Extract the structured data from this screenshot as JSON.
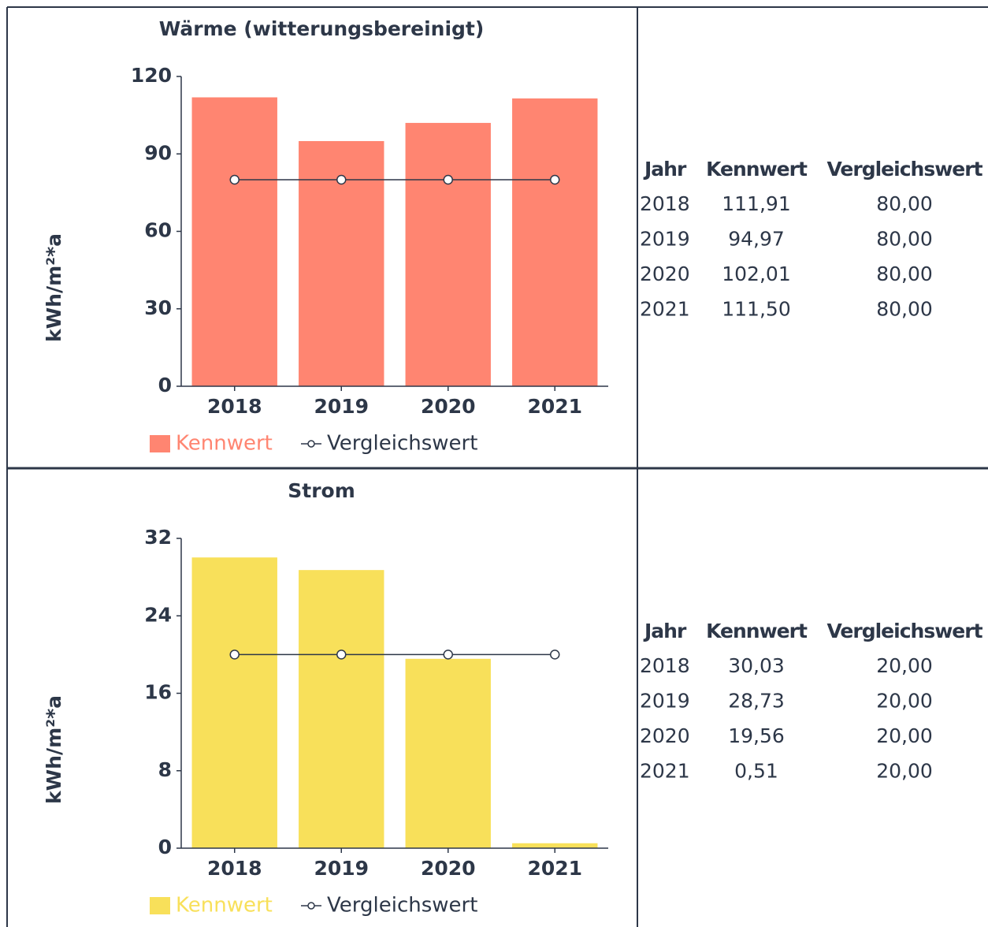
{
  "chart_data": [
    {
      "type": "bar",
      "title": "Wärme (witterungsbereinigt)",
      "y_label": "kWh/m²*a",
      "categories": [
        "2018",
        "2019",
        "2020",
        "2021"
      ],
      "series": [
        {
          "name": "Kennwert",
          "type": "bar",
          "color": "#ff8571",
          "values": [
            111.91,
            94.97,
            102.01,
            111.5
          ]
        },
        {
          "name": "Vergleichswert",
          "type": "line",
          "color": "#2d3748",
          "values": [
            80,
            80,
            80,
            80
          ]
        }
      ],
      "ylim": [
        0,
        120
      ],
      "yticks": [
        0,
        30,
        60,
        90,
        120
      ]
    },
    {
      "type": "bar",
      "title": "Strom",
      "y_label": "kWh/m²*a",
      "categories": [
        "2018",
        "2019",
        "2020",
        "2021"
      ],
      "series": [
        {
          "name": "Kennwert",
          "type": "bar",
          "color": "#f8e05a",
          "values": [
            30.03,
            28.73,
            19.56,
            0.51
          ]
        },
        {
          "name": "Vergleichswert",
          "type": "line",
          "color": "#2d3748",
          "values": [
            20,
            20,
            20,
            20
          ]
        }
      ],
      "ylim": [
        0,
        32
      ],
      "yticks": [
        0,
        8,
        16,
        24,
        32
      ]
    }
  ],
  "tables": [
    {
      "header": [
        "Jahr",
        "Kennwert",
        "Vergleichswert"
      ],
      "rows": [
        [
          "2018",
          "111,91",
          "80,00"
        ],
        [
          "2019",
          "94,97",
          "80,00"
        ],
        [
          "2020",
          "102,01",
          "80,00"
        ],
        [
          "2021",
          "111,50",
          "80,00"
        ]
      ]
    },
    {
      "header": [
        "Jahr",
        "Kennwert",
        "Vergleichswert"
      ],
      "rows": [
        [
          "2018",
          "30,03",
          "20,00"
        ],
        [
          "2019",
          "28,73",
          "20,00"
        ],
        [
          "2020",
          "19,56",
          "20,00"
        ],
        [
          "2021",
          "0,51",
          "20,00"
        ]
      ]
    }
  ]
}
